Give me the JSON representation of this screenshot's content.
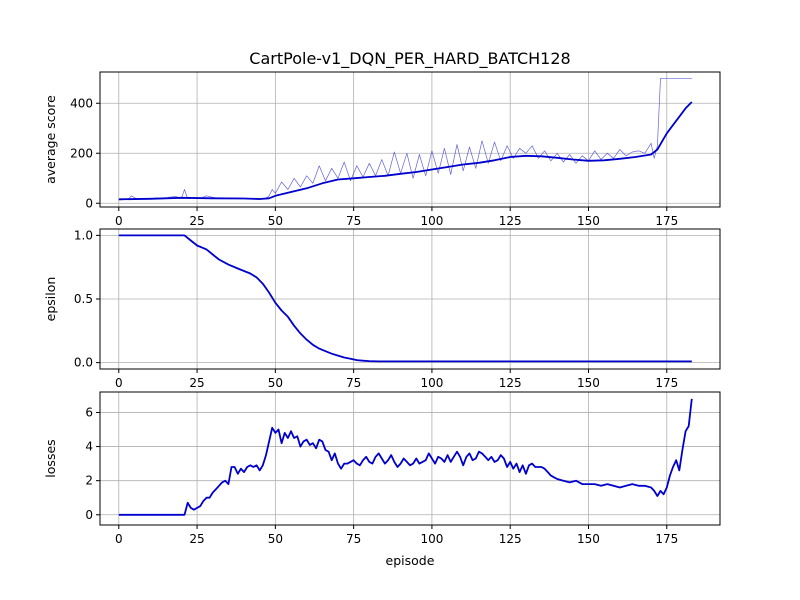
{
  "title": "CartPole-v1_DQN_PER_HARD_BATCH128",
  "colors": {
    "line": "#0000cd",
    "raw": "#3b3bd6",
    "grid": "#b0b0b0",
    "axis": "#000000"
  },
  "chart_data": [
    {
      "type": "line",
      "ylabel": "average score",
      "xlabel": "",
      "xlim": [
        -6,
        192
      ],
      "ylim": [
        -15,
        525
      ],
      "xticks": [
        0,
        25,
        50,
        75,
        100,
        125,
        150,
        175
      ],
      "yticks": [
        0,
        200,
        400
      ],
      "grid": true,
      "series": [
        {
          "style": "thin",
          "x": [
            0,
            3,
            4,
            6,
            8,
            10,
            12,
            14,
            16,
            18,
            20,
            21,
            22,
            24,
            26,
            28,
            30,
            33,
            36,
            40,
            43,
            45,
            47,
            48,
            49,
            50,
            52,
            54,
            56,
            58,
            60,
            62,
            64,
            66,
            68,
            70,
            72,
            74,
            76,
            78,
            80,
            82,
            84,
            86,
            88,
            90,
            92,
            94,
            96,
            98,
            100,
            102,
            104,
            106,
            108,
            110,
            112,
            114,
            116,
            118,
            120,
            122,
            124,
            126,
            128,
            130,
            132,
            134,
            136,
            138,
            140,
            142,
            144,
            146,
            148,
            150,
            152,
            154,
            156,
            158,
            160,
            162,
            164,
            166,
            168,
            170,
            171,
            172,
            173,
            176,
            183
          ],
          "values": [
            14,
            15,
            30,
            15,
            20,
            16,
            22,
            18,
            24,
            28,
            20,
            55,
            18,
            22,
            20,
            30,
            24,
            18,
            22,
            20,
            18,
            15,
            20,
            30,
            55,
            40,
            85,
            55,
            100,
            65,
            110,
            80,
            150,
            90,
            140,
            100,
            165,
            90,
            150,
            105,
            160,
            110,
            175,
            110,
            205,
            120,
            200,
            100,
            195,
            110,
            210,
            120,
            220,
            115,
            235,
            130,
            225,
            140,
            250,
            160,
            245,
            170,
            230,
            180,
            220,
            200,
            230,
            180,
            210,
            170,
            200,
            165,
            195,
            160,
            190,
            170,
            210,
            175,
            200,
            180,
            215,
            190,
            205,
            210,
            200,
            240,
            180,
            230,
            500,
            500,
            500
          ]
        },
        {
          "style": "thick",
          "x": [
            0,
            10,
            20,
            30,
            40,
            45,
            48,
            50,
            55,
            60,
            65,
            70,
            75,
            80,
            85,
            90,
            95,
            100,
            105,
            110,
            115,
            120,
            125,
            130,
            135,
            140,
            145,
            150,
            155,
            160,
            165,
            170,
            172,
            175,
            178,
            181,
            183
          ],
          "values": [
            16,
            18,
            22,
            20,
            19,
            17,
            20,
            30,
            45,
            60,
            80,
            95,
            100,
            105,
            110,
            118,
            125,
            135,
            145,
            155,
            162,
            172,
            185,
            190,
            188,
            182,
            175,
            170,
            172,
            178,
            185,
            195,
            215,
            280,
            330,
            380,
            405
          ]
        }
      ]
    },
    {
      "type": "line",
      "ylabel": "epsilon",
      "xlabel": "",
      "xlim": [
        -6,
        192
      ],
      "ylim": [
        -0.05,
        1.05
      ],
      "xticks": [
        0,
        25,
        50,
        75,
        100,
        125,
        150,
        175
      ],
      "yticks": [
        0.0,
        0.5,
        1.0
      ],
      "ytick_labels": [
        "0.0",
        "0.5",
        "1.0"
      ],
      "grid": true,
      "series": [
        {
          "style": "thick",
          "x": [
            0,
            21,
            23,
            25,
            28,
            30,
            32,
            35,
            38,
            40,
            42,
            44,
            46,
            48,
            50,
            52,
            54,
            56,
            58,
            60,
            62,
            64,
            66,
            68,
            70,
            72,
            74,
            76,
            78,
            80,
            83,
            86,
            90,
            100,
            120,
            150,
            183
          ],
          "values": [
            1.0,
            1.0,
            0.96,
            0.92,
            0.89,
            0.85,
            0.81,
            0.77,
            0.74,
            0.72,
            0.7,
            0.67,
            0.62,
            0.55,
            0.47,
            0.41,
            0.36,
            0.29,
            0.23,
            0.18,
            0.14,
            0.11,
            0.09,
            0.07,
            0.055,
            0.04,
            0.03,
            0.02,
            0.015,
            0.012,
            0.01,
            0.01,
            0.01,
            0.01,
            0.01,
            0.01,
            0.01
          ]
        }
      ]
    },
    {
      "type": "line",
      "ylabel": "losses",
      "xlabel": "episode",
      "xlim": [
        -6,
        192
      ],
      "ylim": [
        -0.6,
        7.2
      ],
      "xticks": [
        0,
        25,
        50,
        75,
        100,
        125,
        150,
        175
      ],
      "yticks": [
        0,
        2,
        4,
        6
      ],
      "grid": true,
      "series": [
        {
          "style": "thick",
          "x": [
            0,
            21,
            22,
            23,
            24,
            25,
            26,
            27,
            28,
            29,
            30,
            31,
            32,
            33,
            34,
            35,
            36,
            37,
            38,
            39,
            40,
            41,
            42,
            43,
            44,
            45,
            46,
            47,
            48,
            49,
            50,
            51,
            52,
            53,
            54,
            55,
            56,
            57,
            58,
            59,
            60,
            61,
            62,
            63,
            64,
            65,
            66,
            67,
            68,
            69,
            70,
            71,
            72,
            73,
            74,
            75,
            76,
            77,
            78,
            79,
            80,
            81,
            82,
            83,
            84,
            85,
            86,
            87,
            88,
            89,
            90,
            91,
            92,
            93,
            94,
            95,
            96,
            97,
            98,
            99,
            100,
            101,
            102,
            103,
            104,
            105,
            106,
            107,
            108,
            109,
            110,
            111,
            112,
            113,
            114,
            115,
            116,
            117,
            118,
            119,
            120,
            121,
            122,
            123,
            124,
            125,
            126,
            127,
            128,
            129,
            130,
            131,
            132,
            133,
            134,
            135,
            136,
            137,
            138,
            139,
            140,
            142,
            144,
            146,
            148,
            150,
            152,
            154,
            156,
            158,
            160,
            162,
            164,
            166,
            168,
            170,
            171,
            172,
            173,
            174,
            175,
            176,
            177,
            178,
            179,
            180,
            181,
            182,
            183
          ],
          "values": [
            0,
            0,
            0.7,
            0.4,
            0.3,
            0.4,
            0.5,
            0.8,
            1.0,
            1.0,
            1.3,
            1.5,
            1.7,
            1.9,
            2.0,
            1.8,
            2.8,
            2.8,
            2.4,
            2.7,
            2.5,
            2.8,
            2.9,
            2.8,
            2.9,
            2.6,
            2.9,
            3.5,
            4.3,
            5.1,
            4.8,
            5.0,
            4.2,
            4.8,
            4.5,
            4.9,
            4.5,
            4.6,
            4.0,
            4.3,
            4.4,
            4.1,
            4.2,
            3.9,
            4.4,
            4.3,
            3.8,
            3.7,
            3.2,
            3.6,
            3.0,
            2.7,
            3.0,
            3.0,
            3.1,
            3.2,
            3.0,
            2.9,
            3.2,
            3.4,
            3.1,
            3.0,
            3.4,
            3.6,
            3.3,
            3.0,
            3.2,
            3.5,
            3.1,
            2.8,
            3.0,
            3.3,
            3.1,
            2.9,
            3.0,
            3.3,
            3.0,
            3.1,
            3.2,
            3.6,
            3.3,
            3.0,
            3.4,
            3.3,
            3.1,
            3.5,
            3.1,
            3.4,
            3.7,
            3.4,
            2.9,
            3.4,
            3.6,
            3.2,
            3.3,
            3.7,
            3.6,
            3.4,
            3.2,
            3.4,
            3.1,
            3.2,
            3.5,
            3.3,
            2.8,
            3.1,
            2.7,
            3.0,
            2.5,
            2.9,
            2.4,
            2.9,
            3.0,
            2.8,
            2.8,
            2.8,
            2.7,
            2.5,
            2.3,
            2.2,
            2.1,
            2.0,
            1.9,
            2.0,
            1.8,
            1.8,
            1.8,
            1.7,
            1.8,
            1.7,
            1.6,
            1.7,
            1.8,
            1.7,
            1.7,
            1.6,
            1.4,
            1.1,
            1.4,
            1.2,
            1.6,
            2.3,
            2.8,
            3.2,
            2.6,
            3.8,
            4.9,
            5.2,
            6.8
          ]
        }
      ]
    }
  ]
}
